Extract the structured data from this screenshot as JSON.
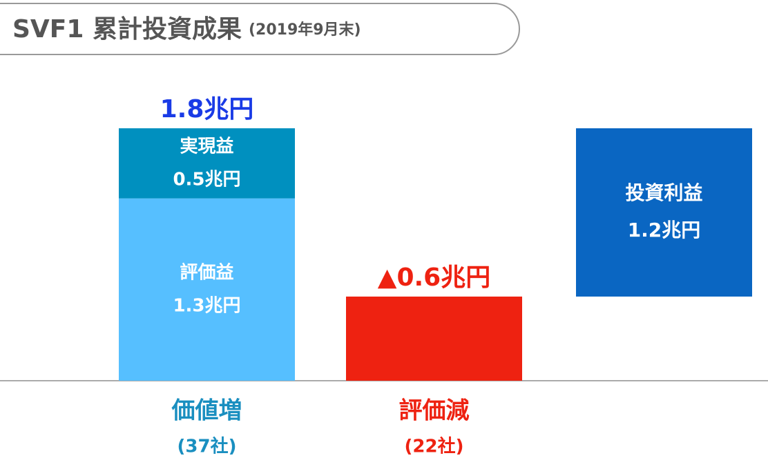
{
  "chart_data": {
    "type": "waterfall",
    "title": "SVF1 累計投資成果",
    "subtitle": "(2019年9月末)",
    "ylim": [
      0,
      1.8
    ],
    "bars": [
      {
        "category": "価値増",
        "note": "(37社)",
        "label_color": "#1a8fc0",
        "value": 1.8,
        "value_label": "1.8兆円",
        "value_color": "#1a3be6",
        "segments": [
          {
            "name": "評価益",
            "value": 1.3,
            "value_label": "1.3兆円",
            "color": "#56bfff"
          },
          {
            "name": "実現益",
            "value": 0.5,
            "value_label": "0.5兆円",
            "color": "#0090bf"
          }
        ]
      },
      {
        "category": "評価減",
        "note": "(22社)",
        "label_color": "#ee2211",
        "value": -0.6,
        "value_label": "▲0.6兆円",
        "color": "#ee2211"
      },
      {
        "name": "投資利益",
        "value": 1.2,
        "value_label": "1.2兆円",
        "color": "#0a66c2"
      }
    ]
  }
}
